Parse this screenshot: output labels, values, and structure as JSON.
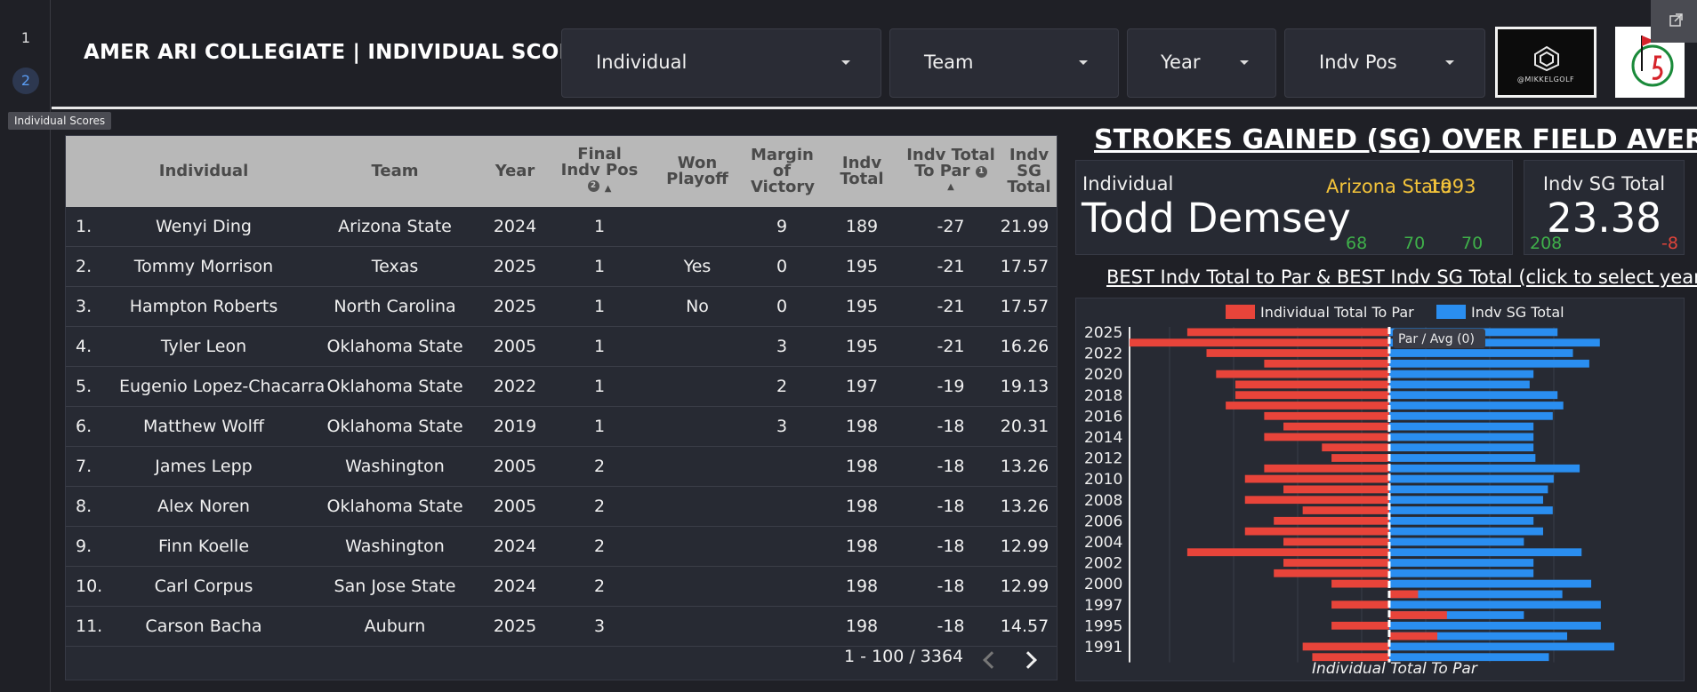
{
  "rail": {
    "pages": [
      "1",
      "2"
    ],
    "active_page": "2",
    "tooltip": "Individual Scores"
  },
  "header": {
    "title": "AMER ARI COLLEGIATE | INDIVIDUAL SCORES",
    "filters": [
      {
        "label": "Individual",
        "icon": "chevron-down-icon"
      },
      {
        "label": "Team",
        "icon": "chevron-down-icon"
      },
      {
        "label": "Year",
        "icon": "chevron-down-icon"
      },
      {
        "label": "Indv Pos",
        "icon": "chevron-down-icon"
      }
    ],
    "logo1_text": "@MIKKELGOLF",
    "external_link_icon": "open-in-new-icon"
  },
  "table": {
    "columns": [
      {
        "key": "rank",
        "label": ""
      },
      {
        "key": "individual",
        "label": "Individual"
      },
      {
        "key": "team",
        "label": "Team"
      },
      {
        "key": "year",
        "label": "Year"
      },
      {
        "key": "final_pos",
        "label": "Final Indv Pos"
      },
      {
        "key": "won_playoff",
        "label": "Won Playoff"
      },
      {
        "key": "margin",
        "label": "Margin of Victory"
      },
      {
        "key": "indv_total",
        "label": "Indv Total"
      },
      {
        "key": "to_par",
        "label": "Indv Total To Par"
      },
      {
        "key": "sg_total",
        "label": "Indv SG Total"
      }
    ],
    "rows": [
      {
        "rank": "1.",
        "individual": "Wenyi Ding",
        "team": "Arizona State",
        "year": "2024",
        "final_pos": "1",
        "won_playoff": "",
        "margin": "9",
        "indv_total": "189",
        "to_par": "-27",
        "sg_total": "21.99"
      },
      {
        "rank": "2.",
        "individual": "Tommy Morrison",
        "team": "Texas",
        "year": "2025",
        "final_pos": "1",
        "won_playoff": "Yes",
        "margin": "0",
        "indv_total": "195",
        "to_par": "-21",
        "sg_total": "17.57"
      },
      {
        "rank": "3.",
        "individual": "Hampton Roberts",
        "team": "North Carolina",
        "year": "2025",
        "final_pos": "1",
        "won_playoff": "No",
        "margin": "0",
        "indv_total": "195",
        "to_par": "-21",
        "sg_total": "17.57"
      },
      {
        "rank": "4.",
        "individual": "Tyler Leon",
        "team": "Oklahoma State",
        "year": "2005",
        "final_pos": "1",
        "won_playoff": "",
        "margin": "3",
        "indv_total": "195",
        "to_par": "-21",
        "sg_total": "16.26"
      },
      {
        "rank": "5.",
        "individual": "Eugenio Lopez-Chacarra",
        "team": "Oklahoma State",
        "year": "2022",
        "final_pos": "1",
        "won_playoff": "",
        "margin": "2",
        "indv_total": "197",
        "to_par": "-19",
        "sg_total": "19.13"
      },
      {
        "rank": "6.",
        "individual": "Matthew Wolff",
        "team": "Oklahoma State",
        "year": "2019",
        "final_pos": "1",
        "won_playoff": "",
        "margin": "3",
        "indv_total": "198",
        "to_par": "-18",
        "sg_total": "20.31"
      },
      {
        "rank": "7.",
        "individual": "James Lepp",
        "team": "Washington",
        "year": "2005",
        "final_pos": "2",
        "won_playoff": "",
        "margin": "",
        "indv_total": "198",
        "to_par": "-18",
        "sg_total": "13.26"
      },
      {
        "rank": "8.",
        "individual": "Alex Noren",
        "team": "Oklahoma State",
        "year": "2005",
        "final_pos": "2",
        "won_playoff": "",
        "margin": "",
        "indv_total": "198",
        "to_par": "-18",
        "sg_total": "13.26"
      },
      {
        "rank": "9.",
        "individual": "Finn Koelle",
        "team": "Washington",
        "year": "2024",
        "final_pos": "2",
        "won_playoff": "",
        "margin": "",
        "indv_total": "198",
        "to_par": "-18",
        "sg_total": "12.99"
      },
      {
        "rank": "10.",
        "individual": "Carl Corpus",
        "team": "San Jose State",
        "year": "2024",
        "final_pos": "2",
        "won_playoff": "",
        "margin": "",
        "indv_total": "198",
        "to_par": "-18",
        "sg_total": "12.99"
      },
      {
        "rank": "11.",
        "individual": "Carson Bacha",
        "team": "Auburn",
        "year": "2025",
        "final_pos": "3",
        "won_playoff": "",
        "margin": "",
        "indv_total": "198",
        "to_par": "-18",
        "sg_total": "14.57"
      }
    ],
    "pager": "1 - 100 / 3364",
    "sort_indicators": {
      "final_pos": "2",
      "to_par": "1"
    }
  },
  "sg": {
    "title": "STROKES GAINED (SG) OVER FIELD AVERAGE",
    "individual_label": "Individual",
    "individual_name": "Todd Demsey",
    "team": "Arizona State",
    "year": "1993",
    "rounds": [
      "68",
      "70",
      "70"
    ],
    "sg_label": "Indv SG Total",
    "sg_value": "23.38",
    "sg_low": "208",
    "sg_high": "-8",
    "colors": {
      "team_year": "#f3c33a",
      "good": "#3fb04a",
      "bad": "#e0443a"
    }
  },
  "best_title": "BEST Indv Total to Par & BEST Indv SG Total (click to select year)",
  "chart_data": {
    "type": "bar",
    "orientation": "horizontal-diverging",
    "title": "",
    "xlabel": "Individual Total To Par",
    "legend_position": "top",
    "reference_label": "Par / Avg (0)",
    "y_tick_labels": [
      "2025",
      "2022",
      "2020",
      "2018",
      "2016",
      "2014",
      "2012",
      "2010",
      "2008",
      "2006",
      "2004",
      "2002",
      "2000",
      "1997",
      "1995",
      "1991"
    ],
    "series": [
      {
        "name": "Individual Total To Par",
        "color": "#e8443a",
        "values": [
          -21,
          -27,
          -19,
          -13,
          -18,
          -16,
          -16,
          -17,
          -13,
          -11,
          -13,
          -7,
          -6,
          -13,
          -15,
          -11,
          -15,
          -9,
          -12,
          -15,
          -11,
          -21,
          -11,
          -12,
          -6,
          3,
          -6,
          6,
          -6,
          5,
          -9,
          -8
        ]
      },
      {
        "name": "Indv SG Total",
        "color": "#2a8ef0",
        "values": [
          17.5,
          21.9,
          19.1,
          20.8,
          15.0,
          14.6,
          17.5,
          18.1,
          17.0,
          15.0,
          15.0,
          15.0,
          15.2,
          19.8,
          17.1,
          16.5,
          16.0,
          17.0,
          15.0,
          16.0,
          14.0,
          20.0,
          15.0,
          15.0,
          21.0,
          18.0,
          22.0,
          14.0,
          22.0,
          18.5,
          23.4,
          16.6
        ]
      }
    ],
    "xlim": [
      -27,
      23.4
    ],
    "grid": true
  }
}
